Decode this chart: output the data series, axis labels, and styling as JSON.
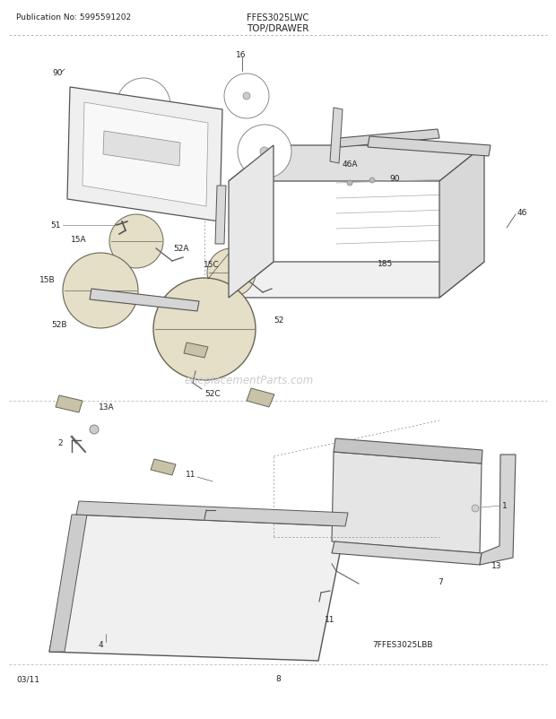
{
  "bg_color": "#ffffff",
  "fig_width": 6.2,
  "fig_height": 8.03,
  "dpi": 100,
  "pub_no": "Publication No: 5995591202",
  "model": "FFES3025LWC",
  "section": "TOP/DRAWER",
  "date": "03/11",
  "page": "8",
  "watermark": "eReplacementParts.com",
  "footer_code": "7FFES3025LBB"
}
